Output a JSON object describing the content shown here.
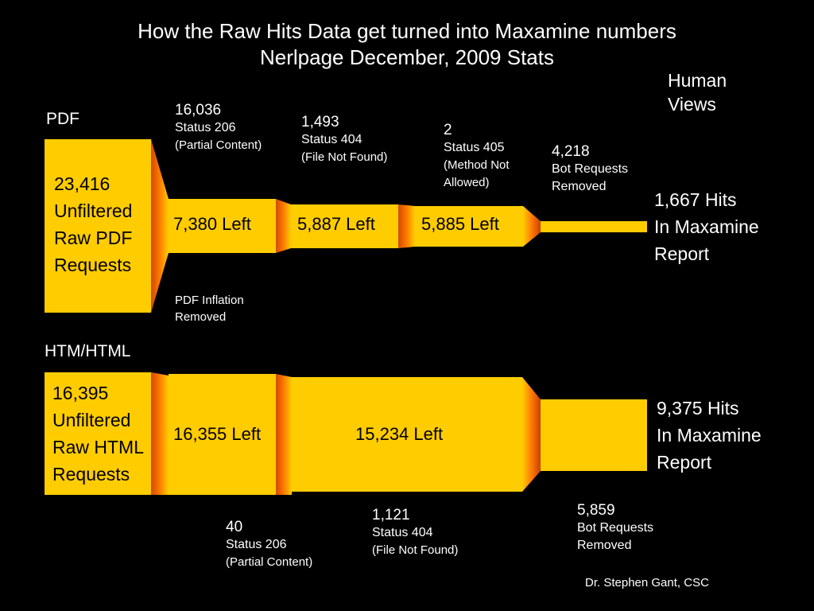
{
  "title": {
    "line1": "How the Raw Hits Data get turned into Maxamine numbers",
    "line2": "Nerlpage December, 2009 Stats"
  },
  "human_views": {
    "line1": "Human",
    "line2": "Views"
  },
  "pdf": {
    "section_label": "PDF",
    "source_box": [
      "23,416",
      "Unfiltered",
      "Raw PDF",
      "Requests"
    ],
    "steps": [
      {
        "count": "16,036",
        "status": "Status 206",
        "detail": "(Partial Content)"
      },
      {
        "count": "1,493",
        "status": "Status 404",
        "detail": "(File Not Found)"
      },
      {
        "count": "2",
        "status": "Status 405",
        "detail_line1": "(Method Not",
        "detail_line2": "Allowed)"
      },
      {
        "count": "4,218",
        "line2": "Bot Requests",
        "line3": "Removed"
      }
    ],
    "left_labels": [
      "7,380 Left",
      "5,887 Left",
      "5,885 Left"
    ],
    "inflation_note": {
      "line1": "PDF Inflation",
      "line2": "Removed"
    },
    "result": [
      "1,667 Hits",
      "In Maxamine",
      "Report"
    ]
  },
  "html": {
    "section_label": "HTM/HTML",
    "source_box": [
      "16,395",
      "Unfiltered",
      "Raw HTML",
      "Requests"
    ],
    "steps": [
      {
        "count": "40",
        "status": "Status 206",
        "detail": "(Partial Content)"
      },
      {
        "count": "1,121",
        "status": "Status 404",
        "detail": "(File Not Found)"
      },
      {
        "count": "5,859",
        "line2": "Bot Requests",
        "line3": "Removed"
      }
    ],
    "left_labels": [
      "16,355 Left",
      "15,234 Left"
    ],
    "result": [
      "9,375 Hits",
      "In Maxamine",
      "Report"
    ]
  },
  "footer": "Dr. Stephen Gant, CSC",
  "colors": {
    "box": "#ffcc00",
    "edge_dark": "#c84800",
    "edge_mid": "#ff7a00",
    "background": "#000000"
  }
}
